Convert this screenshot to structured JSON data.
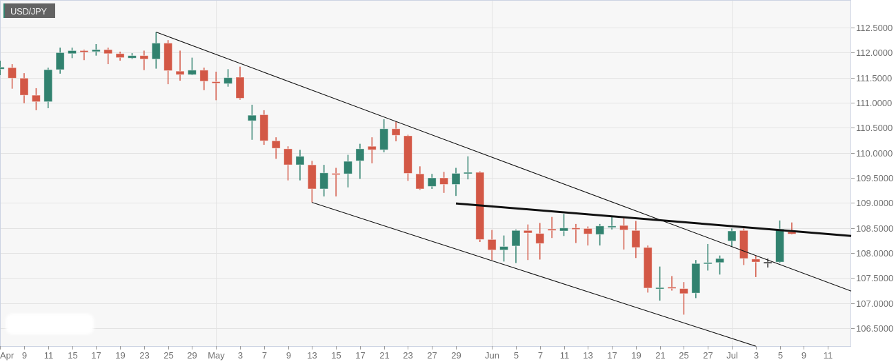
{
  "chart_data": {
    "type": "candlestick",
    "title": "USD/JPY",
    "colors": {
      "up": "#31826f",
      "down": "#d35846",
      "neutral": "#222222",
      "grid": "#e3e3e3",
      "plot_bg": "#f7f7f7",
      "border": "#ccd3e3",
      "trendline": "#111111"
    },
    "ylim": [
      106.15,
      112.95
    ],
    "yticks": [
      "112.5000",
      "112.0000",
      "111.5000",
      "111.0000",
      "110.5000",
      "110.0000",
      "109.5000",
      "109.0000",
      "108.5000",
      "108.0000",
      "107.5000",
      "107.0000",
      "106.5000"
    ],
    "xlim_index": [
      0,
      70.95
    ],
    "xticks": [
      {
        "i": 0,
        "label": "Apr"
      },
      {
        "i": 2,
        "label": "9"
      },
      {
        "i": 4,
        "label": "11"
      },
      {
        "i": 6,
        "label": "15"
      },
      {
        "i": 8,
        "label": "17"
      },
      {
        "i": 10,
        "label": "19"
      },
      {
        "i": 12,
        "label": "23"
      },
      {
        "i": 14,
        "label": "25"
      },
      {
        "i": 16,
        "label": "29"
      },
      {
        "i": 18,
        "label": "May"
      },
      {
        "i": 20,
        "label": "3"
      },
      {
        "i": 22,
        "label": "7"
      },
      {
        "i": 24,
        "label": "9"
      },
      {
        "i": 26,
        "label": "13"
      },
      {
        "i": 28,
        "label": "15"
      },
      {
        "i": 30,
        "label": "17"
      },
      {
        "i": 32,
        "label": "21"
      },
      {
        "i": 34,
        "label": "23"
      },
      {
        "i": 36,
        "label": "27"
      },
      {
        "i": 38,
        "label": "29"
      },
      {
        "i": 41,
        "label": "Jun"
      },
      {
        "i": 43,
        "label": "5"
      },
      {
        "i": 45,
        "label": "7"
      },
      {
        "i": 47,
        "label": "11"
      },
      {
        "i": 49,
        "label": "13"
      },
      {
        "i": 51,
        "label": "17"
      },
      {
        "i": 53,
        "label": "19"
      },
      {
        "i": 55,
        "label": "21"
      },
      {
        "i": 57,
        "label": "25"
      },
      {
        "i": 59,
        "label": "27"
      },
      {
        "i": 61,
        "label": "Jul"
      },
      {
        "i": 63,
        "label": "3"
      },
      {
        "i": 65,
        "label": "5"
      },
      {
        "i": 67,
        "label": "9"
      },
      {
        "i": 69,
        "label": "11"
      }
    ],
    "month_gridlines_index": [
      18,
      41,
      61
    ],
    "candles_ohlc": [
      [
        111.67,
        111.84,
        111.55,
        111.71
      ],
      [
        111.7,
        111.77,
        111.28,
        111.49
      ],
      [
        111.49,
        111.59,
        110.99,
        111.15
      ],
      [
        111.15,
        111.29,
        110.85,
        111.02
      ],
      [
        111.02,
        111.7,
        110.89,
        111.66
      ],
      [
        111.66,
        112.1,
        111.58,
        112.0
      ],
      [
        111.98,
        112.1,
        111.89,
        112.04
      ],
      [
        112.04,
        112.06,
        111.85,
        112.01
      ],
      [
        112.02,
        112.17,
        111.94,
        112.06
      ],
      [
        112.06,
        112.1,
        111.77,
        111.98
      ],
      [
        111.98,
        112.02,
        111.84,
        111.9
      ],
      [
        111.89,
        111.99,
        111.87,
        111.94
      ],
      [
        111.94,
        112.04,
        111.65,
        111.87
      ],
      [
        111.87,
        112.41,
        111.68,
        112.19
      ],
      [
        112.19,
        112.25,
        111.37,
        111.64
      ],
      [
        111.63,
        112.04,
        111.44,
        111.56
      ],
      [
        111.56,
        111.9,
        111.55,
        111.65
      ],
      [
        111.65,
        111.7,
        111.25,
        111.43
      ],
      [
        111.42,
        111.62,
        111.05,
        111.39
      ],
      [
        111.38,
        111.67,
        111.32,
        111.5
      ],
      [
        111.51,
        111.72,
        111.06,
        111.09
      ],
      [
        110.64,
        110.96,
        110.26,
        110.75
      ],
      [
        110.76,
        110.85,
        110.16,
        110.24
      ],
      [
        110.24,
        110.31,
        109.88,
        110.09
      ],
      [
        110.08,
        110.13,
        109.45,
        109.76
      ],
      [
        109.76,
        110.06,
        109.45,
        109.93
      ],
      [
        109.76,
        109.84,
        109.01,
        109.28
      ],
      [
        109.28,
        109.76,
        109.13,
        109.6
      ],
      [
        109.59,
        109.7,
        109.13,
        109.58
      ],
      [
        109.58,
        109.96,
        109.31,
        109.83
      ],
      [
        109.84,
        110.18,
        109.48,
        110.08
      ],
      [
        110.13,
        110.31,
        109.79,
        110.06
      ],
      [
        110.06,
        110.67,
        110.01,
        110.48
      ],
      [
        110.48,
        110.62,
        110.23,
        110.35
      ],
      [
        110.34,
        110.36,
        109.44,
        109.59
      ],
      [
        109.58,
        109.73,
        109.26,
        109.28
      ],
      [
        109.33,
        109.58,
        109.28,
        109.5
      ],
      [
        109.5,
        109.62,
        109.2,
        109.37
      ],
      [
        109.37,
        109.7,
        109.14,
        109.59
      ],
      [
        109.6,
        109.93,
        109.47,
        109.61
      ],
      [
        109.61,
        109.63,
        108.22,
        108.27
      ],
      [
        108.27,
        108.46,
        107.86,
        108.06
      ],
      [
        108.06,
        108.35,
        107.83,
        108.13
      ],
      [
        108.14,
        108.47,
        107.8,
        108.45
      ],
      [
        108.45,
        108.57,
        107.86,
        108.4
      ],
      [
        108.39,
        108.6,
        107.87,
        108.19
      ],
      [
        108.48,
        108.72,
        108.3,
        108.45
      ],
      [
        108.44,
        108.78,
        108.34,
        108.5
      ],
      [
        108.5,
        108.58,
        108.2,
        108.49
      ],
      [
        108.49,
        108.53,
        108.15,
        108.38
      ],
      [
        108.37,
        108.58,
        108.15,
        108.54
      ],
      [
        108.51,
        108.74,
        108.47,
        108.54
      ],
      [
        108.55,
        108.7,
        108.07,
        108.46
      ],
      [
        108.45,
        108.64,
        107.9,
        108.11
      ],
      [
        108.11,
        108.15,
        107.21,
        107.3
      ],
      [
        107.29,
        107.73,
        107.05,
        107.31
      ],
      [
        107.32,
        107.54,
        107.25,
        107.3
      ],
      [
        107.29,
        107.42,
        106.77,
        107.19
      ],
      [
        107.2,
        107.86,
        107.1,
        107.79
      ],
      [
        107.79,
        108.18,
        107.65,
        107.81
      ],
      [
        107.81,
        107.95,
        107.57,
        107.89
      ],
      [
        108.24,
        108.49,
        108.12,
        108.44
      ],
      [
        108.45,
        108.49,
        107.76,
        107.89
      ],
      [
        107.88,
        107.94,
        107.52,
        107.82
      ],
      [
        107.82,
        107.89,
        107.71,
        107.82
      ],
      [
        107.82,
        108.65,
        107.8,
        108.48
      ],
      [
        108.42,
        108.61,
        108.37,
        108.38
      ]
    ],
    "trendlines": [
      {
        "name": "upper-channel-line",
        "from": [
          13,
          112.41
        ],
        "to": [
          70.95,
          107.24
        ],
        "weight": "thin"
      },
      {
        "name": "lower-channel-line",
        "from": [
          26,
          109.01
        ],
        "to": [
          63,
          106.14
        ],
        "weight": "thin"
      },
      {
        "name": "resistance-line",
        "from": [
          38,
          108.99
        ],
        "to": [
          70.95,
          108.34
        ],
        "weight": "thick"
      }
    ]
  }
}
